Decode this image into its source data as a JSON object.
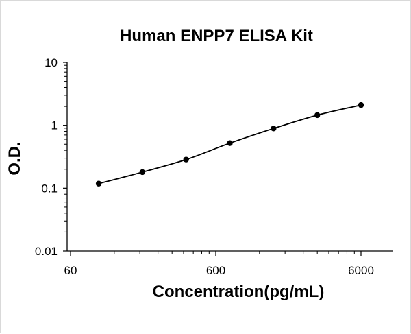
{
  "chart_data": {
    "type": "scatter",
    "title": "Human ENPP7 ELISA Kit",
    "xlabel": "Concentration(pg/mL)",
    "ylabel": "O.D.",
    "x_scale": "log",
    "y_scale": "log",
    "xlim": [
      60,
      6000
    ],
    "ylim": [
      0.01,
      10
    ],
    "x_ticks": [
      "60",
      "600",
      "6000"
    ],
    "y_ticks": [
      "10",
      "1",
      "0.1",
      "0.01"
    ],
    "grid": false,
    "legend": "none",
    "series": [
      {
        "x": [
          93.75,
          187.5,
          375,
          750,
          1500,
          3000,
          6000
        ],
        "y": [
          0.118,
          0.18,
          0.285,
          0.52,
          0.89,
          1.45,
          2.1
        ]
      }
    ],
    "colors": {
      "marker": "#000000",
      "line": "#000000",
      "axis": "#000000"
    }
  }
}
